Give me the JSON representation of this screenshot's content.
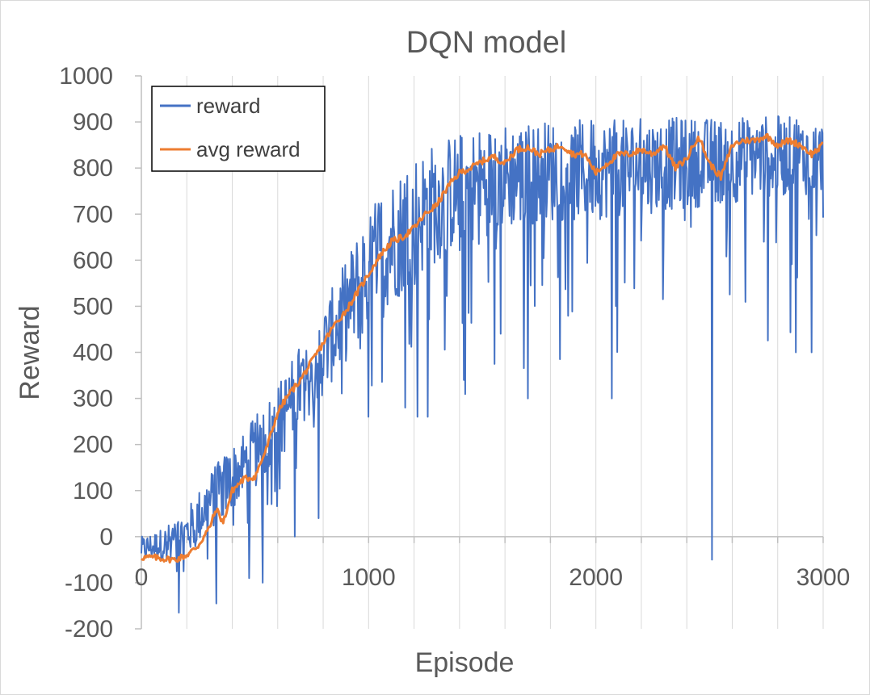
{
  "chart_data": {
    "type": "line",
    "title": "DQN model",
    "xlabel": "Episode",
    "ylabel": "Reward",
    "xlim": [
      0,
      3000
    ],
    "ylim": [
      -200,
      1000
    ],
    "x_ticks": [
      "0",
      "1000",
      "2000",
      "3000"
    ],
    "y_ticks": [
      "-200",
      "-100",
      "0",
      "100",
      "200",
      "300",
      "400",
      "500",
      "600",
      "700",
      "800",
      "900",
      "1000"
    ],
    "grid": "vertical minor gridlines",
    "legend_position": "top-left",
    "series": [
      {
        "name": "reward",
        "color": "#4472c4",
        "style": "noisy per-episode line",
        "envelope": {
          "x": [
            0,
            100,
            200,
            300,
            400,
            500,
            600,
            700,
            800,
            900,
            1000,
            1100,
            1200,
            1300,
            1400,
            1500,
            1600,
            1700,
            1800,
            1900,
            2000,
            2100,
            2200,
            2300,
            2400,
            2500,
            2600,
            2700,
            2800,
            2900,
            3000
          ],
          "low": [
            -80,
            -90,
            -100,
            -60,
            -20,
            20,
            60,
            140,
            200,
            260,
            300,
            360,
            400,
            450,
            500,
            520,
            540,
            550,
            560,
            560,
            570,
            580,
            580,
            600,
            600,
            620,
            620,
            640,
            640,
            650,
            650
          ],
          "high": [
            0,
            20,
            60,
            140,
            200,
            260,
            330,
            420,
            500,
            600,
            720,
            780,
            830,
            860,
            880,
            890,
            900,
            900,
            905,
            905,
            905,
            905,
            910,
            910,
            910,
            910,
            910,
            915,
            915,
            910,
            905
          ]
        },
        "dips": [
          {
            "x": 165,
            "y": -165
          },
          {
            "x": 330,
            "y": -145
          },
          {
            "x": 475,
            "y": -90
          },
          {
            "x": 535,
            "y": -100
          },
          {
            "x": 675,
            "y": 0
          },
          {
            "x": 780,
            "y": 40
          },
          {
            "x": 1000,
            "y": 260
          },
          {
            "x": 1160,
            "y": 280
          },
          {
            "x": 1260,
            "y": 260
          },
          {
            "x": 1420,
            "y": 340
          },
          {
            "x": 1700,
            "y": 300
          },
          {
            "x": 2070,
            "y": 300
          },
          {
            "x": 2510,
            "y": -50
          },
          {
            "x": 2880,
            "y": 400
          },
          {
            "x": 2950,
            "y": 400
          }
        ]
      },
      {
        "name": "avg reward",
        "color": "#ed7d31",
        "x": [
          0,
          50,
          100,
          150,
          200,
          250,
          300,
          330,
          360,
          400,
          450,
          500,
          550,
          600,
          650,
          700,
          750,
          800,
          850,
          900,
          950,
          1000,
          1050,
          1100,
          1150,
          1200,
          1250,
          1300,
          1350,
          1400,
          1450,
          1500,
          1550,
          1600,
          1650,
          1700,
          1750,
          1800,
          1850,
          1900,
          1950,
          2000,
          2050,
          2100,
          2150,
          2200,
          2250,
          2300,
          2350,
          2400,
          2450,
          2500,
          2550,
          2600,
          2650,
          2700,
          2750,
          2800,
          2850,
          2900,
          2950,
          3000
        ],
        "y": [
          -45,
          -45,
          -48,
          -50,
          -40,
          -20,
          20,
          60,
          30,
          100,
          125,
          130,
          190,
          270,
          310,
          340,
          380,
          420,
          460,
          490,
          530,
          570,
          610,
          640,
          650,
          670,
          700,
          720,
          760,
          790,
          800,
          815,
          825,
          810,
          840,
          845,
          830,
          840,
          850,
          830,
          830,
          790,
          810,
          830,
          830,
          840,
          830,
          850,
          800,
          820,
          870,
          810,
          780,
          850,
          860,
          860,
          870,
          850,
          860,
          850,
          830,
          850
        ]
      }
    ]
  }
}
